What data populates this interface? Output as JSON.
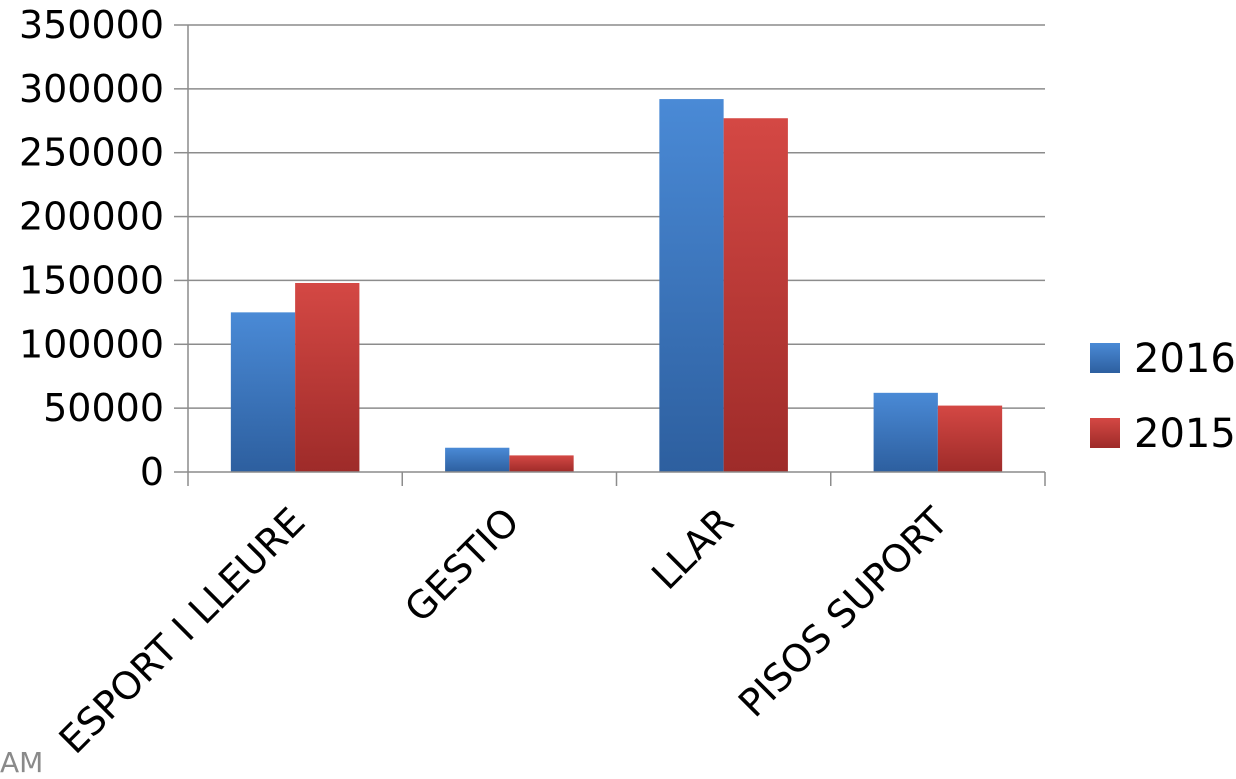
{
  "chart_data": {
    "type": "bar",
    "title": "",
    "xlabel": "",
    "ylabel": "",
    "categories": [
      "ESPORT I LLEURE",
      "GESTIO",
      "LLAR",
      "PISOS SUPORT"
    ],
    "series": [
      {
        "name": "2016",
        "values": [
          125000,
          19000,
          292000,
          62000
        ]
      },
      {
        "name": "2015",
        "values": [
          148000,
          13000,
          277000,
          52000
        ]
      }
    ],
    "ylim": [
      0,
      350000
    ],
    "yticks": [
      0,
      50000,
      100000,
      150000,
      200000,
      250000,
      300000,
      350000
    ],
    "ytick_labels": [
      "0",
      "50000",
      "100000",
      "150000",
      "200000",
      "250000",
      "300000",
      "350000"
    ],
    "grid": true,
    "legend_position": "right",
    "colors": {
      "2016": {
        "top": "#4a8ad6",
        "bottom": "#2d5f9f"
      },
      "2015": {
        "top": "#d44844",
        "bottom": "#9e2b29"
      },
      "grid": "#8c8c8c",
      "axis": "#8c8c8c"
    }
  },
  "footer": {
    "corner_text": "AM"
  }
}
